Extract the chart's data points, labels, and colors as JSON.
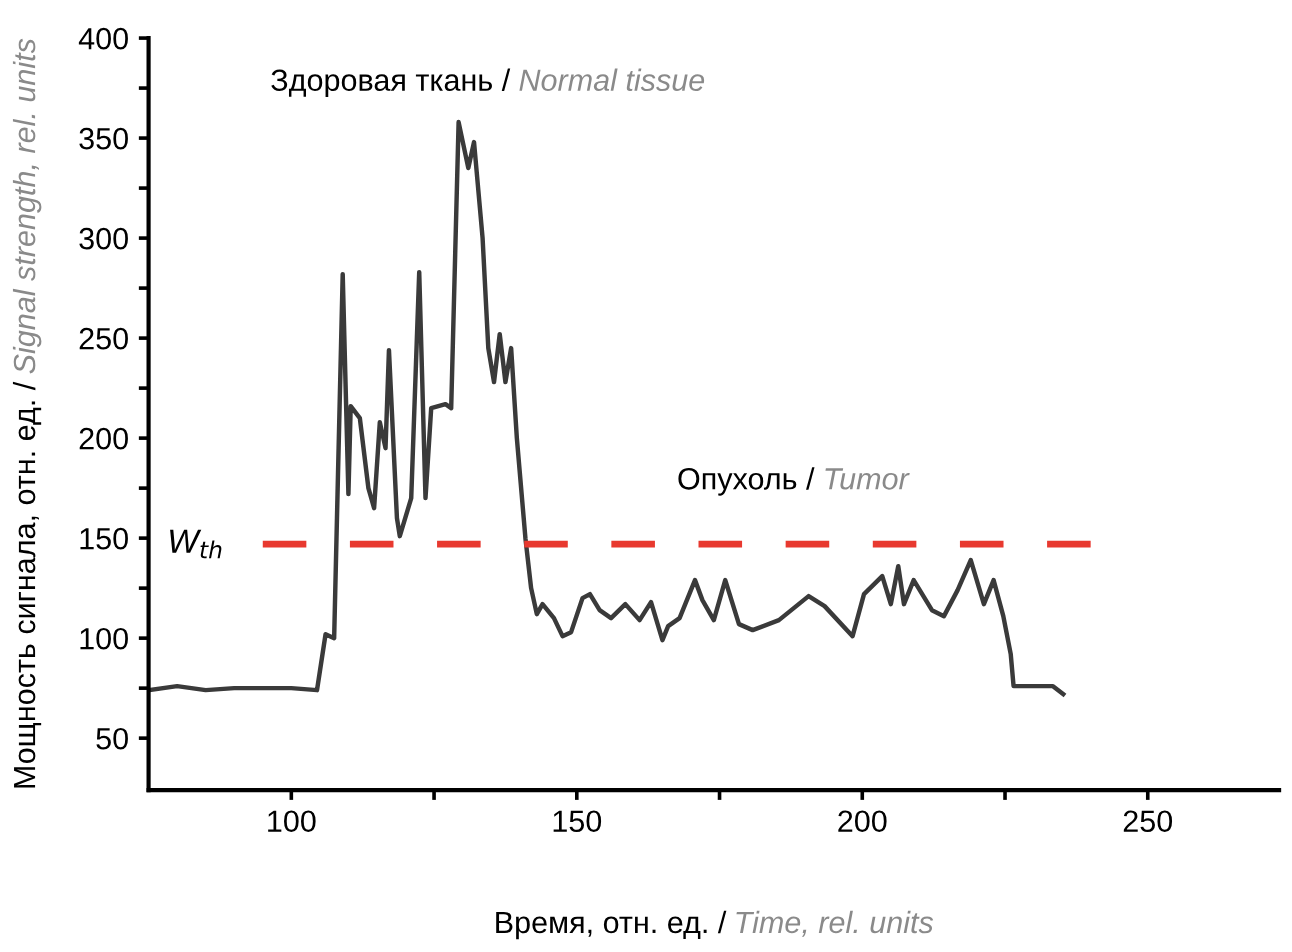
{
  "chart_data": {
    "type": "line",
    "xlabel": "Время, отн. ед. / Time, rel. units",
    "ylabel": "Мощность сигнала, отн. ед. / Signal strength, rel. units",
    "xlim": [
      75,
      273
    ],
    "ylim": [
      24,
      400
    ],
    "xticks": [
      100,
      {
        "value": 125,
        "label": null
      },
      150,
      {
        "value": 175,
        "label": null
      },
      200,
      {
        "value": 225,
        "label": null
      },
      250
    ],
    "yticks": [
      50,
      {
        "value": 75,
        "label": null
      },
      100,
      {
        "value": 125,
        "label": null
      },
      150,
      {
        "value": 175,
        "label": null
      },
      200,
      {
        "value": 225,
        "label": null
      },
      250,
      {
        "value": 275,
        "label": null
      },
      300,
      {
        "value": 325,
        "label": null
      },
      350,
      {
        "value": 375,
        "label": null
      },
      400
    ],
    "grid": false,
    "legend": false,
    "marker": "none",
    "series": [
      {
        "color": "#3a3a3a",
        "line_style": "solid",
        "x": [
          75,
          80,
          85,
          90,
          95,
          100,
          104.5,
          106,
          107.5,
          109,
          110,
          110.4,
          112,
          113.5,
          114.5,
          115.5,
          116.5,
          117.1,
          118.5,
          119,
          121,
          122.4,
          123.5,
          124.5,
          127,
          128,
          129.3,
          131,
          132,
          133.5,
          134.5,
          135.5,
          136.5,
          137.5,
          138.5,
          139.5,
          141,
          142,
          143,
          144,
          146,
          147.5,
          149,
          151,
          152.3,
          154,
          156,
          158.5,
          161,
          163,
          165,
          166,
          168,
          170.7,
          172,
          174,
          176,
          178.4,
          180.8,
          185.4,
          190.6,
          193.4,
          198.3,
          200.3,
          203.5,
          205,
          206.3,
          207.3,
          209,
          212.2,
          214.3,
          216.7,
          219,
          221.3,
          223,
          224.7,
          226,
          226.5,
          230.7,
          233.4,
          235.2
        ],
        "values": [
          74,
          76,
          74,
          75,
          75,
          75,
          74,
          102,
          100,
          282,
          172,
          216,
          210,
          175,
          165,
          208,
          195,
          244,
          160,
          151,
          170,
          283,
          170,
          215,
          217,
          215,
          358,
          335,
          348,
          300,
          245,
          228,
          252,
          228,
          245,
          200,
          150,
          125,
          112,
          117,
          110,
          101,
          103,
          120,
          122,
          114,
          110,
          117,
          109,
          118,
          99,
          106,
          110,
          129,
          119,
          109,
          129,
          107,
          104,
          109,
          121,
          116,
          101,
          122,
          131,
          117,
          136,
          117,
          129,
          114,
          111,
          124,
          139,
          117,
          129,
          111,
          92,
          76,
          76,
          76,
          72
        ]
      },
      {
        "name": "W$_{th}$",
        "color": "#e8392f",
        "line_style": "dashed",
        "x": [
          240,
          95
        ],
        "values": [
          147,
          147
        ]
      }
    ],
    "annotations": [
      "Здоровая ткань / Normal tissue",
      "Опухоль / Tumor"
    ]
  }
}
